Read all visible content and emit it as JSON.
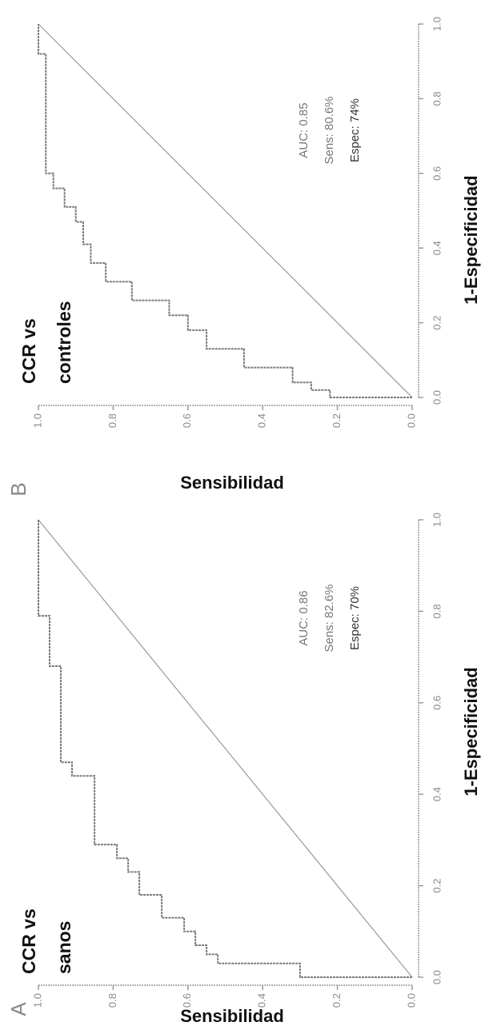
{
  "chart_data": [
    {
      "type": "line",
      "panel": "A",
      "title": [
        "CCR vs",
        "sanos"
      ],
      "xlabel": "1-Especificidad",
      "ylabel": "Sensibilidad",
      "annotations": [
        "AUC: 0.86",
        "Sens: 82.6%",
        "Espec: 70%"
      ],
      "xlim": [
        0,
        1
      ],
      "ylim": [
        0,
        1
      ],
      "xticks": [
        {
          "value": 0,
          "label": "0.0"
        },
        {
          "value": 0.2,
          "label": "0.2"
        },
        {
          "value": 0.4,
          "label": "0.4"
        },
        {
          "value": 0.6,
          "label": "0.6"
        },
        {
          "value": 0.8,
          "label": "0.8"
        },
        {
          "value": 1,
          "label": "1.0"
        }
      ],
      "yticks": [
        {
          "value": 0,
          "label": "0.0"
        },
        {
          "value": 0.2,
          "label": "0.2"
        },
        {
          "value": 0.4,
          "label": "0.4"
        },
        {
          "value": 0.6,
          "label": "0.6"
        },
        {
          "value": 0.8,
          "label": "0.8"
        },
        {
          "value": 1,
          "label": "1.0"
        }
      ],
      "color": "#7a7a7a",
      "x": [
        0,
        0,
        0.03,
        0.03,
        0.05,
        0.05,
        0.07,
        0.07,
        0.1,
        0.1,
        0.13,
        0.13,
        0.18,
        0.18,
        0.23,
        0.23,
        0.26,
        0.26,
        0.29,
        0.29,
        0.44,
        0.44,
        0.47,
        0.47,
        0.68,
        0.68,
        0.79,
        0.79,
        1
      ],
      "values": [
        0,
        0.3,
        0.3,
        0.52,
        0.52,
        0.55,
        0.55,
        0.58,
        0.58,
        0.61,
        0.61,
        0.67,
        0.67,
        0.73,
        0.73,
        0.76,
        0.76,
        0.79,
        0.79,
        0.85,
        0.85,
        0.91,
        0.91,
        0.94,
        0.94,
        0.97,
        0.97,
        1,
        1
      ]
    },
    {
      "type": "line",
      "panel": "B",
      "title": [
        "CCR vs",
        "controles"
      ],
      "xlabel": "1-Especificidad",
      "ylabel": "Sensibilidad",
      "annotations": [
        "AUC: 0.85",
        "Sens: 80.6%",
        "Espec: 74%"
      ],
      "xlim": [
        0,
        1
      ],
      "ylim": [
        0,
        1
      ],
      "xticks": [
        {
          "value": 0,
          "label": "0.0"
        },
        {
          "value": 0.2,
          "label": "0.2"
        },
        {
          "value": 0.4,
          "label": "0.4"
        },
        {
          "value": 0.6,
          "label": "0.6"
        },
        {
          "value": 0.8,
          "label": "0.8"
        },
        {
          "value": 1,
          "label": "1.0"
        }
      ],
      "yticks": [
        {
          "value": 0,
          "label": "0.0"
        },
        {
          "value": 0.2,
          "label": "0.2"
        },
        {
          "value": 0.4,
          "label": "0.4"
        },
        {
          "value": 0.6,
          "label": "0.6"
        },
        {
          "value": 0.8,
          "label": "0.8"
        },
        {
          "value": 1,
          "label": "1.0"
        }
      ],
      "color": "#7a7a7a",
      "x": [
        0,
        0,
        0.02,
        0.02,
        0.04,
        0.04,
        0.08,
        0.08,
        0.13,
        0.13,
        0.18,
        0.18,
        0.22,
        0.22,
        0.26,
        0.26,
        0.31,
        0.31,
        0.36,
        0.36,
        0.41,
        0.41,
        0.47,
        0.47,
        0.51,
        0.51,
        0.56,
        0.56,
        0.6,
        0.6,
        0.92,
        0.92,
        1
      ],
      "values": [
        0,
        0.22,
        0.22,
        0.27,
        0.27,
        0.32,
        0.32,
        0.45,
        0.45,
        0.55,
        0.55,
        0.6,
        0.6,
        0.65,
        0.65,
        0.75,
        0.75,
        0.82,
        0.82,
        0.86,
        0.86,
        0.88,
        0.88,
        0.9,
        0.9,
        0.93,
        0.93,
        0.96,
        0.96,
        0.98,
        0.98,
        1,
        1
      ]
    }
  ]
}
